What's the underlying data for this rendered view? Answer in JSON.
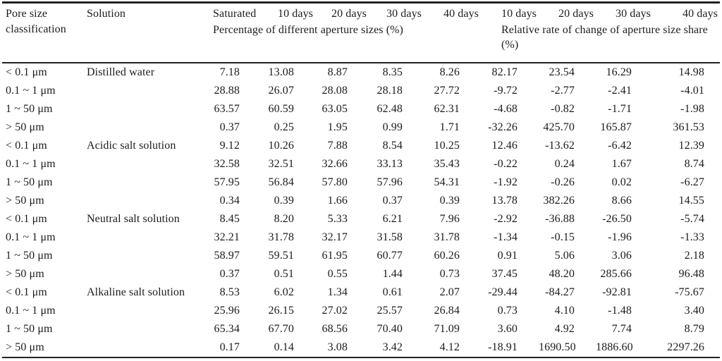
{
  "table": {
    "header": {
      "pore_size": "Pore size classification",
      "solution": "Solution",
      "saturated": "Saturated",
      "pct_day_labels": [
        "10 days",
        "20 days",
        "30 days",
        "40 days"
      ],
      "rate_day_labels": [
        "10 days",
        "20 days",
        "30 days",
        "40 days"
      ],
      "group1": "Percentage of different aperture sizes (%)",
      "group2": "Relative rate of change of aperture size share (%)"
    },
    "groups": [
      {
        "solution": "Distilled water",
        "rows": [
          {
            "pore": "< 0.1 μm",
            "values": [
              "7.18",
              "13.08",
              "8.87",
              "8.35",
              "8.26",
              "82.17",
              "23.54",
              "16.29",
              "14.98"
            ]
          },
          {
            "pore": "0.1 ~ 1 μm",
            "values": [
              "28.88",
              "26.07",
              "28.08",
              "28.18",
              "27.72",
              "-9.72",
              "-2.77",
              "-2.41",
              "-4.01"
            ]
          },
          {
            "pore": "1 ~ 50 μm",
            "values": [
              "63.57",
              "60.59",
              "63.05",
              "62.48",
              "62.31",
              "-4.68",
              "-0.82",
              "-1.71",
              "-1.98"
            ]
          },
          {
            "pore": "> 50 μm",
            "values": [
              "0.37",
              "0.25",
              "1.95",
              "0.99",
              "1.71",
              "-32.26",
              "425.70",
              "165.87",
              "361.53"
            ]
          }
        ]
      },
      {
        "solution": "Acidic salt solution",
        "rows": [
          {
            "pore": "< 0.1 μm",
            "values": [
              "9.12",
              "10.26",
              "7.88",
              "8.54",
              "10.25",
              "12.46",
              "-13.62",
              "-6.42",
              "12.39"
            ]
          },
          {
            "pore": "0.1 ~ 1 μm",
            "values": [
              "32.58",
              "32.51",
              "32.66",
              "33.13",
              "35.43",
              "-0.22",
              "0.24",
              "1.67",
              "8.74"
            ]
          },
          {
            "pore": "1 ~ 50 μm",
            "values": [
              "57.95",
              "56.84",
              "57.80",
              "57.96",
              "54.31",
              "-1.92",
              "-0.26",
              "0.02",
              "-6.27"
            ]
          },
          {
            "pore": "> 50 μm",
            "values": [
              "0.34",
              "0.39",
              "1.66",
              "0.37",
              "0.39",
              "13.78",
              "382.26",
              "8.66",
              "14.55"
            ]
          }
        ]
      },
      {
        "solution": "Neutral salt solution",
        "rows": [
          {
            "pore": "< 0.1 μm",
            "values": [
              "8.45",
              "8.20",
              "5.33",
              "6.21",
              "7.96",
              "-2.92",
              "-36.88",
              "-26.50",
              "-5.74"
            ]
          },
          {
            "pore": "0.1 ~ 1 μm",
            "values": [
              "32.21",
              "31.78",
              "32.17",
              "31.58",
              "31.78",
              "-1.34",
              "-0.15",
              "-1.96",
              "-1.33"
            ]
          },
          {
            "pore": "1 ~ 50 μm",
            "values": [
              "58.97",
              "59.51",
              "61.95",
              "60.77",
              "60.26",
              "0.91",
              "5.06",
              "3.06",
              "2.18"
            ]
          },
          {
            "pore": "> 50 μm",
            "values": [
              "0.37",
              "0.51",
              "0.55",
              "1.44",
              "0.73",
              "37.45",
              "48.20",
              "285.66",
              "96.48"
            ]
          }
        ]
      },
      {
        "solution": "Alkaline salt solution",
        "rows": [
          {
            "pore": "< 0.1 μm",
            "values": [
              "8.53",
              "6.02",
              "1.34",
              "0.61",
              "2.07",
              "-29.44",
              "-84.27",
              "-92.81",
              "-75.67"
            ]
          },
          {
            "pore": "0.1 ~ 1 μm",
            "values": [
              "25.96",
              "26.15",
              "27.02",
              "25.57",
              "26.84",
              "0.73",
              "4.10",
              "-1.48",
              "3.40"
            ]
          },
          {
            "pore": "1 ~ 50 μm",
            "values": [
              "65.34",
              "67.70",
              "68.56",
              "70.40",
              "71.09",
              "3.60",
              "4.92",
              "7.74",
              "8.79"
            ]
          },
          {
            "pore": "> 50 μm",
            "values": [
              "0.17",
              "0.14",
              "3.08",
              "3.42",
              "4.12",
              "-18.91",
              "1690.50",
              "1886.60",
              "2297.26"
            ]
          }
        ]
      }
    ]
  }
}
